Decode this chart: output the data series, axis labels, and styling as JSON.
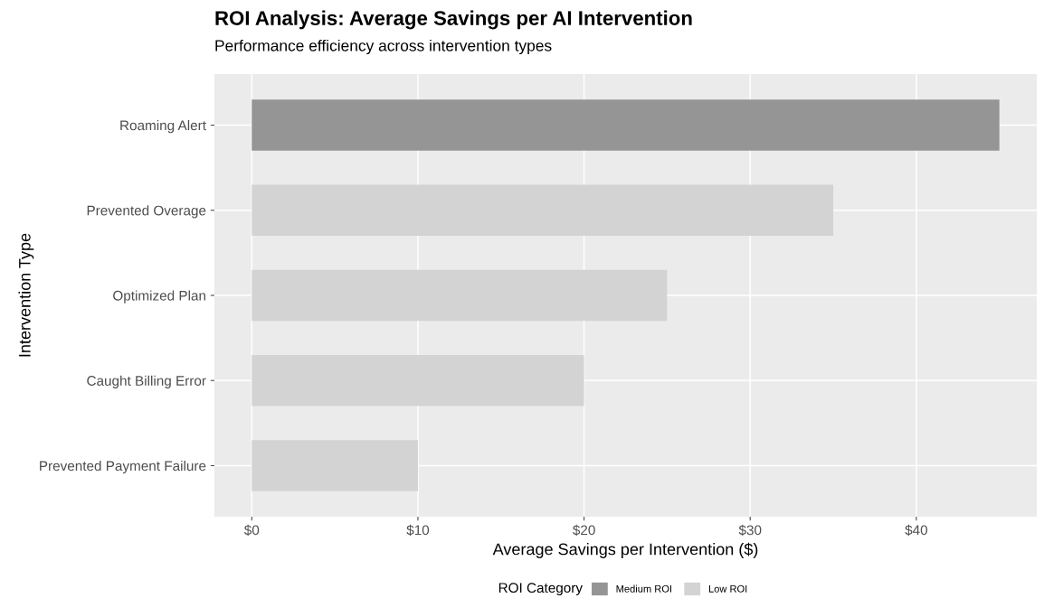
{
  "chart_data": {
    "type": "bar",
    "orientation": "horizontal",
    "title": "ROI Analysis: Average Savings per AI Intervention",
    "subtitle": "Performance efficiency across intervention types",
    "xlabel": "Average Savings per Intervention ($)",
    "ylabel": "Intervention Type",
    "legend_title": "ROI Category",
    "legend": "bottom",
    "grid": true,
    "categories": [
      "Roaming Alert",
      "Prevented Overage",
      "Optimized Plan",
      "Caught Billing Error",
      "Prevented Payment Failure"
    ],
    "series": [
      {
        "name": "Medium ROI",
        "color": "#959595",
        "values": [
          45,
          null,
          null,
          null,
          null
        ]
      },
      {
        "name": "Low ROI",
        "color": "#d3d3d3",
        "values": [
          null,
          35,
          25,
          20,
          10
        ]
      }
    ],
    "xlim": [
      -2.25,
      47.25
    ],
    "xticks": [
      {
        "value": 0,
        "label": "$0"
      },
      {
        "value": 10,
        "label": "$10"
      },
      {
        "value": 20,
        "label": "$20"
      },
      {
        "value": 30,
        "label": "$30"
      },
      {
        "value": 40,
        "label": "$40"
      }
    ]
  }
}
